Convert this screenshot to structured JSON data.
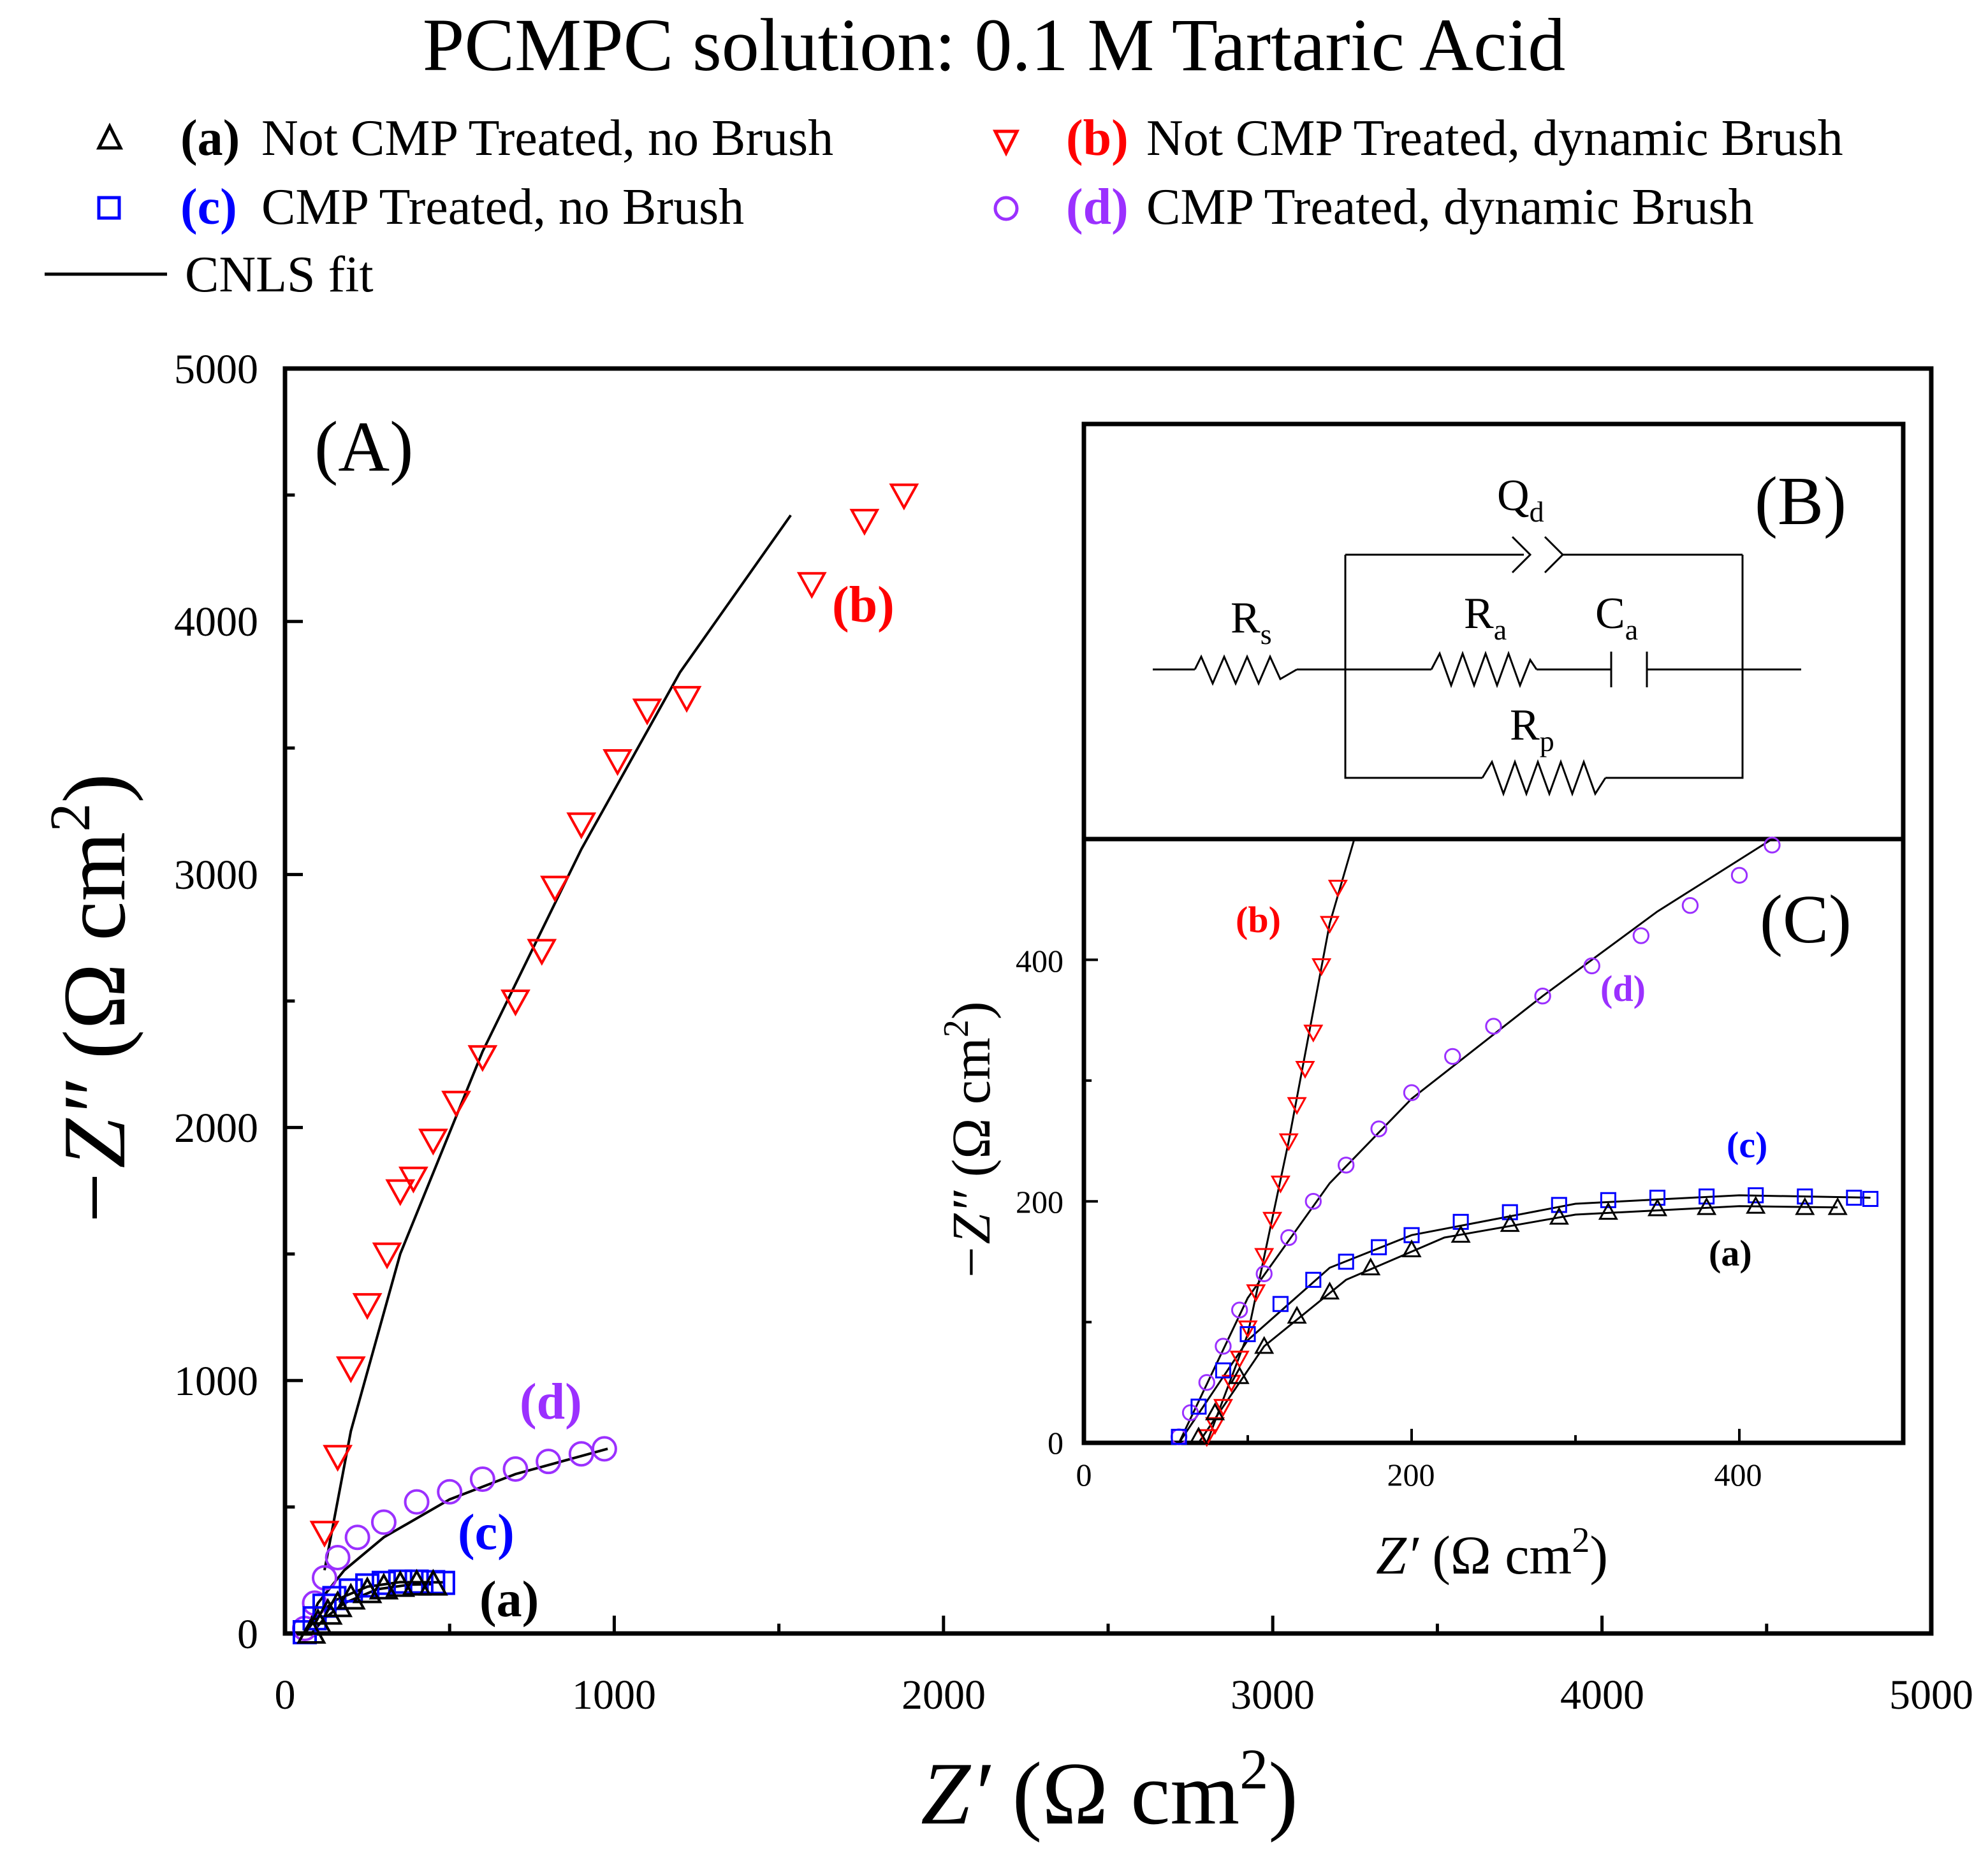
{
  "figure_title": "PCMPC solution: 0.1 M Tartaric Acid",
  "legend": {
    "a": {
      "tag": "(a)",
      "text": "Not CMP Treated, no Brush",
      "color": "#000000",
      "marker": "triangle-up"
    },
    "b": {
      "tag": "(b)",
      "text": "Not CMP Treated,  dynamic Brush",
      "color": "#ff0000",
      "marker": "triangle-down"
    },
    "c": {
      "tag": "(c)",
      "text": "CMP Treated, no Brush",
      "color": "#0000ff",
      "marker": "square"
    },
    "d": {
      "tag": "(d)",
      "text": "CMP Treated, dynamic Brush",
      "color": "#9b30ff",
      "marker": "circle"
    },
    "fit": {
      "text": "CNLS fit",
      "color": "#000000"
    }
  },
  "panel_labels": {
    "A": "(A)",
    "B": "(B)",
    "C": "(C)"
  },
  "curve_labels": {
    "a": "(a)",
    "b": "(b)",
    "c": "(c)",
    "d": "(d)"
  },
  "inset_curve_labels": {
    "a": "(a)",
    "b": "(b)",
    "c": "(c)",
    "d": "(d)"
  },
  "main_axes": {
    "xlabel_italic": "Z′",
    "xlabel_rest": " (Ω cm",
    "ylabel_italic": "−Z″",
    "ylabel_rest": " (Ω cm",
    "superscript": "2",
    "close": ")",
    "xticks": [
      "0",
      "1000",
      "2000",
      "3000",
      "4000",
      "5000"
    ],
    "yticks": [
      "0",
      "1000",
      "2000",
      "3000",
      "4000",
      "5000"
    ]
  },
  "inset_axes": {
    "xlabel_italic": "Z′",
    "xlabel_rest": " (Ω cm",
    "ylabel_italic": "−Z″",
    "ylabel_rest": " (Ω cm",
    "superscript": "2",
    "close": ")",
    "xticks": [
      "0",
      "200",
      "400"
    ],
    "yticks": [
      "0",
      "200",
      "400"
    ]
  },
  "circuit": {
    "Qd": "Q",
    "Qd_sub": "d",
    "Rs": "R",
    "Rs_sub": "s",
    "Ra": "R",
    "Ra_sub": "a",
    "Ca": "C",
    "Ca_sub": "a",
    "Rp": "R",
    "Rp_sub": "p"
  },
  "chart_data": [
    {
      "id": "A",
      "type": "scatter",
      "title": "PCMPC solution: 0.1 M Tartaric Acid",
      "xlabel": "Z′ (Ω cm2)",
      "ylabel": "−Z″ (Ω cm2)",
      "xlim": [
        0,
        5000
      ],
      "ylim": [
        0,
        5000
      ],
      "series": [
        {
          "name": "(b) Not CMP Treated, dynamic Brush",
          "color": "#ff0000",
          "marker": "triangle-down",
          "x": [
            120,
            160,
            200,
            250,
            310,
            350,
            390,
            450,
            520,
            600,
            700,
            780,
            820,
            900,
            1010,
            1100,
            1220,
            1600,
            1760,
            1880
          ],
          "y": [
            400,
            700,
            1050,
            1300,
            1500,
            1750,
            1800,
            1950,
            2100,
            2280,
            2500,
            2700,
            2950,
            3200,
            3450,
            3650,
            3700,
            4150,
            4400,
            4500
          ]
        },
        {
          "name": "(d) CMP Treated, dynamic Brush",
          "color": "#9b30ff",
          "marker": "circle",
          "x": [
            60,
            90,
            120,
            160,
            220,
            300,
            400,
            500,
            600,
            700,
            800,
            900,
            970
          ],
          "y": [
            20,
            120,
            220,
            300,
            380,
            440,
            520,
            560,
            610,
            650,
            680,
            710,
            730
          ]
        },
        {
          "name": "(c) CMP Treated, no Brush",
          "color": "#0000ff",
          "marker": "square",
          "x": [
            60,
            90,
            120,
            150,
            200,
            250,
            300,
            350,
            400,
            450,
            480
          ],
          "y": [
            5,
            60,
            110,
            140,
            170,
            190,
            200,
            205,
            205,
            203,
            200
          ]
        },
        {
          "name": "(a) Not CMP Treated, no Brush",
          "color": "#000000",
          "marker": "triangle-up",
          "x": [
            80,
            100,
            130,
            160,
            200,
            250,
            300,
            350,
            400,
            450
          ],
          "y": [
            5,
            40,
            80,
            110,
            140,
            165,
            180,
            190,
            195,
            195
          ]
        }
      ],
      "fits": [
        {
          "name": "CNLS fit (b)",
          "x": [
            120,
            200,
            350,
            600,
            900,
            1200,
            1536
          ],
          "y": [
            250,
            800,
            1500,
            2300,
            3100,
            3800,
            4420
          ]
        },
        {
          "name": "CNLS fit (d)",
          "x": [
            60,
            100,
            180,
            300,
            500,
            700,
            980
          ],
          "y": [
            0,
            120,
            250,
            380,
            530,
            630,
            730
          ]
        },
        {
          "name": "CNLS fit (c)",
          "x": [
            60,
            100,
            150,
            250,
            350,
            480
          ],
          "y": [
            0,
            70,
            130,
            185,
            203,
            202
          ]
        },
        {
          "name": "CNLS fit (a)",
          "x": [
            80,
            120,
            180,
            280,
            380,
            450
          ],
          "y": [
            0,
            60,
            120,
            175,
            193,
            195
          ]
        }
      ]
    },
    {
      "id": "C",
      "type": "scatter",
      "xlabel": "Z′ (Ω cm2)",
      "ylabel": "−Z″ (Ω cm2)",
      "xlim": [
        0,
        500
      ],
      "ylim": [
        0,
        500
      ],
      "series": [
        {
          "name": "(b)",
          "color": "#ff0000",
          "marker": "triangle-down",
          "x": [
            75,
            80,
            85,
            90,
            95,
            100,
            105,
            110,
            115,
            120,
            125,
            130,
            135,
            140,
            145,
            150,
            155
          ],
          "y": [
            5,
            15,
            30,
            50,
            70,
            95,
            125,
            155,
            185,
            215,
            250,
            280,
            310,
            340,
            395,
            430,
            460
          ]
        },
        {
          "name": "(d)",
          "color": "#9b30ff",
          "marker": "circle",
          "x": [
            58,
            65,
            75,
            85,
            95,
            110,
            125,
            140,
            160,
            180,
            200,
            225,
            250,
            280,
            310,
            340,
            370,
            400,
            420
          ],
          "y": [
            5,
            25,
            50,
            80,
            110,
            140,
            170,
            200,
            230,
            260,
            290,
            320,
            345,
            370,
            395,
            420,
            445,
            470,
            495
          ]
        },
        {
          "name": "(c)",
          "color": "#0000ff",
          "marker": "square",
          "x": [
            58,
            70,
            85,
            100,
            120,
            140,
            160,
            180,
            200,
            230,
            260,
            290,
            320,
            350,
            380,
            410,
            440,
            470,
            480
          ],
          "y": [
            5,
            30,
            60,
            90,
            115,
            135,
            150,
            162,
            172,
            183,
            191,
            197,
            201,
            203,
            204,
            205,
            204,
            203,
            202
          ]
        },
        {
          "name": "(a)",
          "color": "#000000",
          "marker": "triangle-up",
          "x": [
            70,
            80,
            95,
            110,
            130,
            150,
            175,
            200,
            230,
            260,
            290,
            320,
            350,
            380,
            410,
            440,
            460
          ],
          "y": [
            5,
            25,
            55,
            80,
            105,
            125,
            145,
            160,
            172,
            181,
            187,
            191,
            194,
            195,
            196,
            195,
            195
          ]
        }
      ],
      "fits": [
        {
          "name": "fit (b)",
          "x": [
            75,
            100,
            125,
            150,
            165
          ],
          "y": [
            0,
            90,
            250,
            430,
            500
          ]
        },
        {
          "name": "fit (d)",
          "x": [
            58,
            100,
            150,
            200,
            280,
            350,
            420
          ],
          "y": [
            0,
            120,
            215,
            285,
            370,
            440,
            500
          ]
        },
        {
          "name": "fit (c)",
          "x": [
            58,
            100,
            150,
            200,
            300,
            400,
            480
          ],
          "y": [
            0,
            85,
            145,
            172,
            198,
            205,
            203
          ]
        },
        {
          "name": "fit (a)",
          "x": [
            70,
            110,
            160,
            220,
            300,
            400,
            460
          ],
          "y": [
            0,
            80,
            135,
            170,
            189,
            196,
            195
          ]
        }
      ]
    }
  ]
}
